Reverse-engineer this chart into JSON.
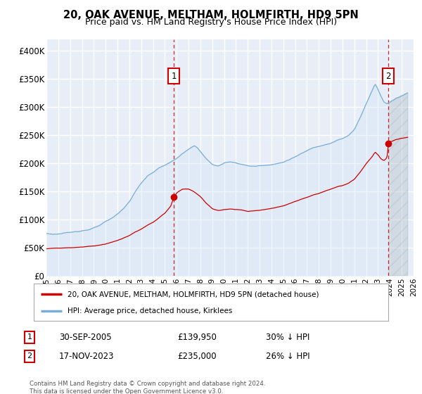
{
  "title": "20, OAK AVENUE, MELTHAM, HOLMFIRTH, HD9 5PN",
  "subtitle": "Price paid vs. HM Land Registry's House Price Index (HPI)",
  "ylim": [
    0,
    420000
  ],
  "yticks": [
    0,
    50000,
    100000,
    150000,
    200000,
    250000,
    300000,
    350000,
    400000
  ],
  "ytick_labels": [
    "£0",
    "£50K",
    "£100K",
    "£150K",
    "£200K",
    "£250K",
    "£300K",
    "£350K",
    "£400K"
  ],
  "hpi_color": "#7aadd4",
  "hpi_fill_color": "#d0e4f5",
  "price_color": "#cc0000",
  "dashed_line_color": "#cc0000",
  "background_color": "#e8eef8",
  "grid_color": "#ffffff",
  "title_fontsize": 11,
  "subtitle_fontsize": 9.5,
  "legend_label_1": "20, OAK AVENUE, MELTHAM, HOLMFIRTH, HD9 5PN (detached house)",
  "legend_label_2": "HPI: Average price, detached house, Kirklees",
  "sale_1_date": "30-SEP-2005",
  "sale_1_price": "£139,950",
  "sale_1_hpi": "30% ↓ HPI",
  "sale_1_x_year": 2005.75,
  "sale_1_price_val": 139950,
  "sale_2_date": "17-NOV-2023",
  "sale_2_price": "£235,000",
  "sale_2_hpi": "26% ↓ HPI",
  "sale_2_x_year": 2023.88,
  "sale_2_price_val": 235000,
  "footnote": "Contains HM Land Registry data © Crown copyright and database right 2024.\nThis data is licensed under the Open Government Licence v3.0.",
  "xmin": 1995,
  "xmax": 2026,
  "hpi_segments": [
    [
      1995.0,
      75000
    ],
    [
      1995.5,
      74000
    ],
    [
      1996.0,
      74500
    ],
    [
      1996.5,
      75500
    ],
    [
      1997.0,
      76000
    ],
    [
      1997.5,
      78000
    ],
    [
      1998.0,
      80000
    ],
    [
      1998.5,
      82000
    ],
    [
      1999.0,
      85000
    ],
    [
      1999.5,
      89000
    ],
    [
      2000.0,
      95000
    ],
    [
      2000.5,
      100000
    ],
    [
      2001.0,
      108000
    ],
    [
      2001.5,
      118000
    ],
    [
      2002.0,
      130000
    ],
    [
      2002.5,
      148000
    ],
    [
      2003.0,
      163000
    ],
    [
      2003.5,
      175000
    ],
    [
      2004.0,
      182000
    ],
    [
      2004.5,
      190000
    ],
    [
      2005.0,
      195000
    ],
    [
      2005.5,
      200000
    ],
    [
      2006.0,
      207000
    ],
    [
      2006.5,
      215000
    ],
    [
      2007.0,
      222000
    ],
    [
      2007.5,
      228000
    ],
    [
      2007.75,
      225000
    ],
    [
      2008.0,
      218000
    ],
    [
      2008.5,
      205000
    ],
    [
      2009.0,
      195000
    ],
    [
      2009.5,
      192000
    ],
    [
      2010.0,
      197000
    ],
    [
      2010.5,
      200000
    ],
    [
      2011.0,
      198000
    ],
    [
      2011.5,
      196000
    ],
    [
      2012.0,
      193000
    ],
    [
      2012.5,
      192000
    ],
    [
      2013.0,
      193000
    ],
    [
      2013.5,
      194000
    ],
    [
      2014.0,
      196000
    ],
    [
      2014.5,
      198000
    ],
    [
      2015.0,
      200000
    ],
    [
      2015.5,
      205000
    ],
    [
      2016.0,
      210000
    ],
    [
      2016.5,
      215000
    ],
    [
      2017.0,
      220000
    ],
    [
      2017.5,
      225000
    ],
    [
      2018.0,
      228000
    ],
    [
      2018.5,
      232000
    ],
    [
      2019.0,
      235000
    ],
    [
      2019.5,
      240000
    ],
    [
      2020.0,
      243000
    ],
    [
      2020.5,
      248000
    ],
    [
      2021.0,
      258000
    ],
    [
      2021.5,
      280000
    ],
    [
      2022.0,
      305000
    ],
    [
      2022.5,
      328000
    ],
    [
      2022.75,
      340000
    ],
    [
      2023.0,
      330000
    ],
    [
      2023.25,
      318000
    ],
    [
      2023.5,
      308000
    ],
    [
      2023.75,
      305000
    ],
    [
      2024.0,
      308000
    ],
    [
      2024.5,
      315000
    ],
    [
      2025.0,
      320000
    ],
    [
      2025.5,
      325000
    ]
  ],
  "price_segments": [
    [
      1995.0,
      48000
    ],
    [
      1995.5,
      49000
    ],
    [
      1996.0,
      49500
    ],
    [
      1996.5,
      50000
    ],
    [
      1997.0,
      50500
    ],
    [
      1997.5,
      51000
    ],
    [
      1998.0,
      52000
    ],
    [
      1998.5,
      53000
    ],
    [
      1999.0,
      54000
    ],
    [
      1999.5,
      56000
    ],
    [
      2000.0,
      58000
    ],
    [
      2000.5,
      61000
    ],
    [
      2001.0,
      64000
    ],
    [
      2001.5,
      68000
    ],
    [
      2002.0,
      73000
    ],
    [
      2002.5,
      79000
    ],
    [
      2003.0,
      84000
    ],
    [
      2003.5,
      90000
    ],
    [
      2004.0,
      96000
    ],
    [
      2004.5,
      104000
    ],
    [
      2005.0,
      112000
    ],
    [
      2005.5,
      125000
    ],
    [
      2005.75,
      139950
    ],
    [
      2006.0,
      148000
    ],
    [
      2006.5,
      155000
    ],
    [
      2007.0,
      155000
    ],
    [
      2007.5,
      150000
    ],
    [
      2008.0,
      142000
    ],
    [
      2008.5,
      130000
    ],
    [
      2009.0,
      120000
    ],
    [
      2009.5,
      117000
    ],
    [
      2010.0,
      119000
    ],
    [
      2010.5,
      120000
    ],
    [
      2011.0,
      119000
    ],
    [
      2011.5,
      118000
    ],
    [
      2012.0,
      115000
    ],
    [
      2012.5,
      116000
    ],
    [
      2013.0,
      117000
    ],
    [
      2013.5,
      118000
    ],
    [
      2014.0,
      120000
    ],
    [
      2014.5,
      122000
    ],
    [
      2015.0,
      124000
    ],
    [
      2015.5,
      128000
    ],
    [
      2016.0,
      132000
    ],
    [
      2016.5,
      136000
    ],
    [
      2017.0,
      140000
    ],
    [
      2017.5,
      144000
    ],
    [
      2018.0,
      147000
    ],
    [
      2018.5,
      151000
    ],
    [
      2019.0,
      155000
    ],
    [
      2019.5,
      159000
    ],
    [
      2020.0,
      161000
    ],
    [
      2020.5,
      165000
    ],
    [
      2021.0,
      172000
    ],
    [
      2021.5,
      185000
    ],
    [
      2022.0,
      200000
    ],
    [
      2022.5,
      212000
    ],
    [
      2022.75,
      220000
    ],
    [
      2023.0,
      215000
    ],
    [
      2023.25,
      208000
    ],
    [
      2023.5,
      205000
    ],
    [
      2023.75,
      210000
    ],
    [
      2023.88,
      235000
    ],
    [
      2024.0,
      238000
    ],
    [
      2024.5,
      242000
    ],
    [
      2025.0,
      244000
    ],
    [
      2025.5,
      246000
    ]
  ]
}
